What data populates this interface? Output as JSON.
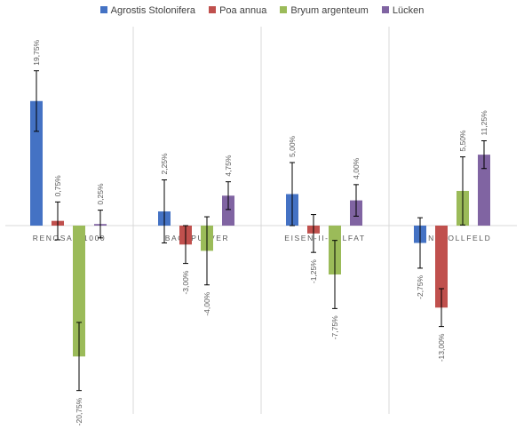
{
  "chart_data": {
    "type": "bar",
    "categories": [
      "RENOSAN 1000",
      "BACKPULVER",
      "EISEN-II-SULFAT",
      "KONTROLLFELD"
    ],
    "series": [
      {
        "name": "Agrostis Stolonifera",
        "color": "#4472C4",
        "values": [
          19.75,
          2.25,
          5.0,
          -2.75
        ],
        "labels": [
          "19,75%",
          "2,25%",
          "5,00%",
          "-2,75%"
        ],
        "error": [
          4.8,
          5.0,
          5.0,
          4.0
        ]
      },
      {
        "name": "Poa annua",
        "color": "#C0504D",
        "values": [
          0.75,
          -3.0,
          -1.25,
          -13.0
        ],
        "labels": [
          "0,75%",
          "-3,00%",
          "-1,25%",
          "-13,00%"
        ],
        "error": [
          3.0,
          3.0,
          3.0,
          3.0
        ]
      },
      {
        "name": "Bryum argenteum",
        "color": "#9BBB59",
        "values": [
          -20.75,
          -4.0,
          -7.75,
          5.5
        ],
        "labels": [
          "-20,75%",
          "-4,00%",
          "-7,75%",
          "5,50%"
        ],
        "error": [
          5.4,
          5.4,
          5.4,
          5.4
        ]
      },
      {
        "name": "Lücken",
        "color": "#8064A2",
        "values": [
          0.25,
          4.75,
          4.0,
          11.25
        ],
        "labels": [
          "0,25%",
          "4,75%",
          "4,00%",
          "11,25%"
        ],
        "error": [
          2.2,
          2.2,
          2.5,
          2.2
        ]
      }
    ],
    "ylim": [
      -30,
      30
    ],
    "grid": false,
    "legend": "top"
  }
}
